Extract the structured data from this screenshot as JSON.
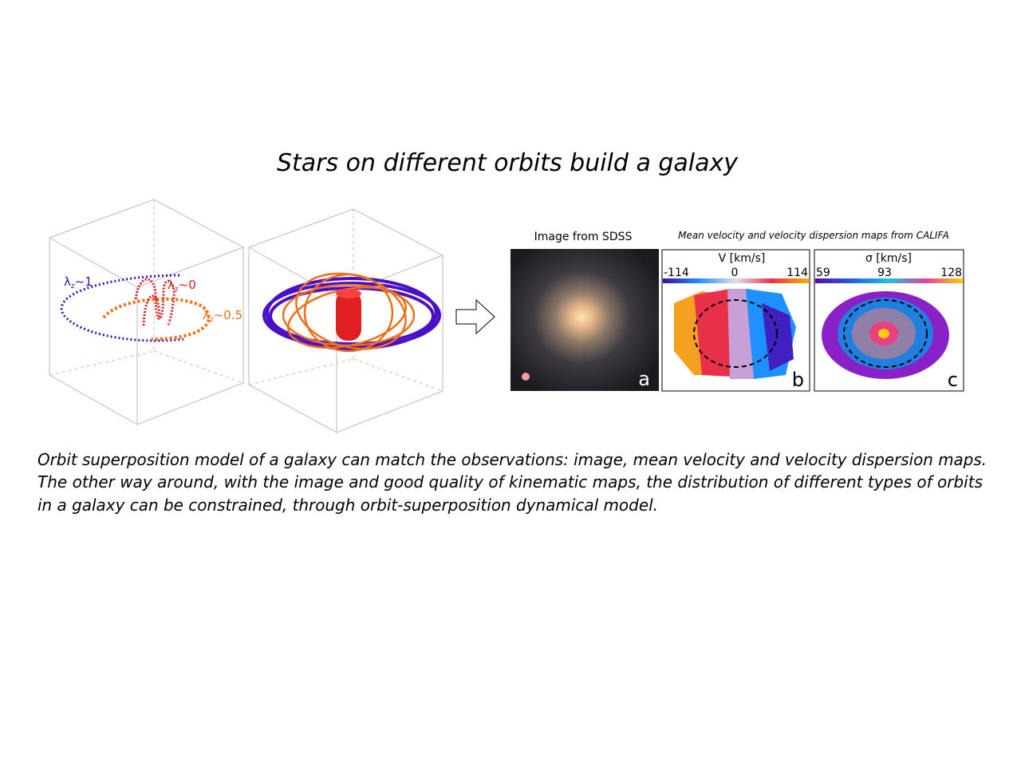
{
  "title": "Stars on different orbits build a galaxy",
  "orbit_labels": [
    {
      "symbol": "λ",
      "sub": "z",
      "suffix": "~1"
    },
    {
      "symbol": "λ",
      "sub": "z",
      "suffix": "~0"
    },
    {
      "symbol": "λ",
      "sub": "z",
      "suffix": "~0.5"
    }
  ],
  "image_panel": {
    "title": "Image from SDSS",
    "letter": "a"
  },
  "maps_title": "Mean velocity and velocity dispersion maps from CALIFA",
  "maps": [
    {
      "label": "V [km/s]",
      "ticks": [
        -114,
        0,
        114
      ],
      "letter": "b"
    },
    {
      "label": "σ [km/s]",
      "ticks": [
        59,
        93,
        128
      ],
      "letter": "c"
    }
  ],
  "caption": [
    "Orbit superposition model of a galaxy can match the observations: image, mean velocity and velocity dispersion maps.",
    "The other way around, with the image and good quality of kinematic maps, the distribution of different types of orbits",
    "in a galaxy can be constrained, through orbit-superposition dynamical model."
  ]
}
